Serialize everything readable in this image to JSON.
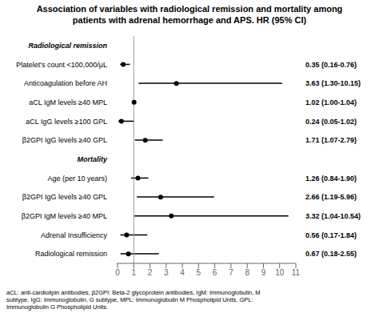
{
  "chart_data": {
    "type": "forest",
    "title": "Association of variables with radiological remission and mortality among\npatients with adrenal hemorrhage and APS. HR (95% CI)",
    "footnote": "aCL: anti-cardiolipin antibodies, β2GPI: Beta-2 glycoprotein antibodies, IgM: Immunoglobulin, M\nsubtype, IgG: Immunoglobulin, G subtype, MPL: Immunoglobulin M Phospholipid Units, GPL:\nImmunoglobulin G Phospholipid Units.",
    "categories": [
      "Radiological remission",
      "Platelet's count <100,000/μL",
      "Anticoagulation before AH",
      "aCL IgM levels ≥40 MPL",
      "aCL IgG levels ≥100 GPL",
      "β2GPI IgG levels ≥40 GPL",
      "Mortality",
      "Age (per 10 years)",
      "β2GPI IgG levels ≥40 GPL",
      "β2GPI IgM levels ≥40 MPL",
      "Adrenal Insufficiency",
      "Radiological remission"
    ],
    "values": [
      null,
      0.35,
      3.63,
      1.02,
      0.24,
      1.71,
      null,
      1.26,
      2.66,
      3.32,
      0.56,
      0.67
    ],
    "lo": [
      null,
      0.16,
      1.3,
      1.0,
      0.05,
      1.07,
      null,
      0.84,
      1.19,
      1.04,
      0.17,
      0.18
    ],
    "hi": [
      null,
      0.76,
      10.15,
      1.04,
      1.02,
      2.79,
      null,
      1.9,
      5.96,
      10.54,
      1.84,
      2.55
    ],
    "value_labels": [
      null,
      "0.35 (0.16-0.76)",
      "3.63 (1.30-10.15)",
      "1.02 (1.00-1.04)",
      "0.24 (0.05-1.02)",
      "1.71 (1.07-2.79)",
      null,
      "1.26 (0.84-1.90)",
      "2.66 (1.19-5.96)",
      "3.32 (1.04-10.54)",
      "0.56 (0.17-1.84)",
      "0.67 (0.18-2.55)"
    ],
    "reference_line": 1,
    "xlim": [
      -0.05,
      11
    ],
    "xticks": [
      0,
      1,
      2,
      3,
      4,
      5,
      6,
      7,
      8,
      9,
      10,
      11
    ],
    "grid": false
  }
}
